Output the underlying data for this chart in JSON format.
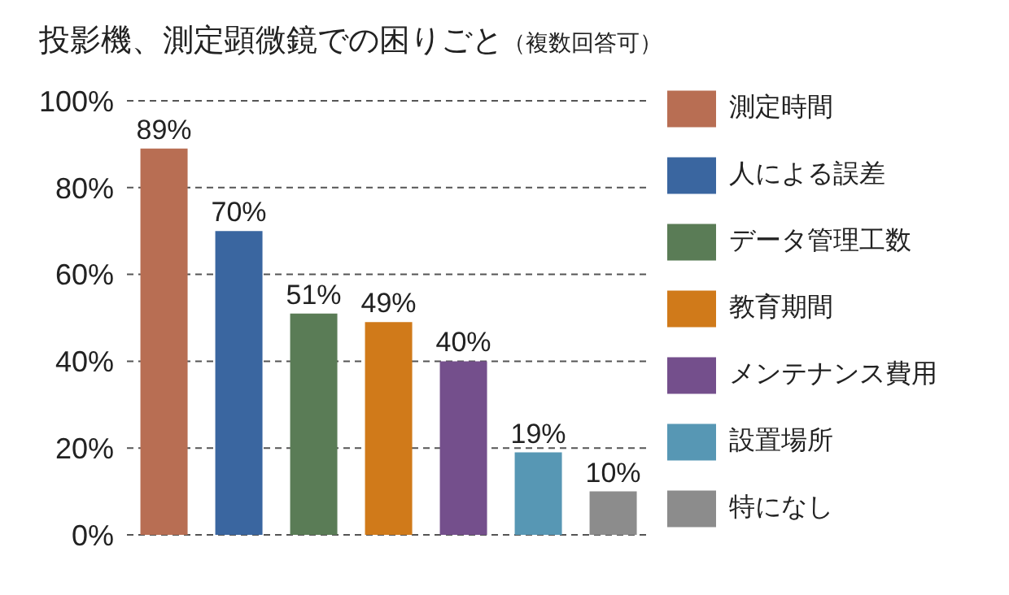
{
  "chart_data": {
    "type": "bar",
    "title": "投影機、測定顕微鏡での困りごと",
    "subtitle": "（複数回答可）",
    "categories": [
      null,
      null,
      null,
      null,
      null,
      null,
      null
    ],
    "series": [
      {
        "name": "測定時間",
        "color": "#b86e53",
        "values": [
          89,
          null,
          null,
          null,
          null,
          null,
          null
        ],
        "value_labels": [
          "89%",
          null,
          null,
          null,
          null,
          null,
          null
        ]
      },
      {
        "name": "人による誤差",
        "color": "#3a66a0",
        "values": [
          null,
          70,
          null,
          null,
          null,
          null,
          null
        ],
        "value_labels": [
          null,
          "70%",
          null,
          null,
          null,
          null,
          null
        ]
      },
      {
        "name": "データ管理工数",
        "color": "#5a7c56",
        "values": [
          null,
          null,
          51,
          null,
          null,
          null,
          null
        ],
        "value_labels": [
          null,
          null,
          "51%",
          null,
          null,
          null,
          null
        ]
      },
      {
        "name": "教育期間",
        "color": "#d07a1a",
        "values": [
          null,
          null,
          null,
          49,
          null,
          null,
          null
        ],
        "value_labels": [
          null,
          null,
          null,
          "49%",
          null,
          null,
          null
        ]
      },
      {
        "name": "メンテナンス費用",
        "color": "#744f8c",
        "values": [
          null,
          null,
          null,
          null,
          40,
          null,
          null
        ],
        "value_labels": [
          null,
          null,
          null,
          null,
          "40%",
          null,
          null
        ]
      },
      {
        "name": "設置場所",
        "color": "#5797b4",
        "values": [
          null,
          null,
          null,
          null,
          null,
          19,
          null
        ],
        "value_labels": [
          null,
          null,
          null,
          null,
          null,
          "19%",
          null
        ]
      },
      {
        "name": "特になし",
        "color": "#8c8c8c",
        "values": [
          null,
          null,
          null,
          null,
          null,
          null,
          10
        ],
        "value_labels": [
          null,
          null,
          null,
          null,
          null,
          null,
          "10%"
        ]
      }
    ],
    "stacked": true,
    "ylim": [
      0,
      100
    ],
    "yticks": [
      {
        "value": 0,
        "label": "0%"
      },
      {
        "value": 20,
        "label": "20%"
      },
      {
        "value": 40,
        "label": "40%"
      },
      {
        "value": 60,
        "label": "60%"
      },
      {
        "value": 80,
        "label": "80%"
      },
      {
        "value": 100,
        "label": "100%"
      }
    ],
    "grid": "y",
    "legend": "right",
    "tick_labels": "y"
  }
}
